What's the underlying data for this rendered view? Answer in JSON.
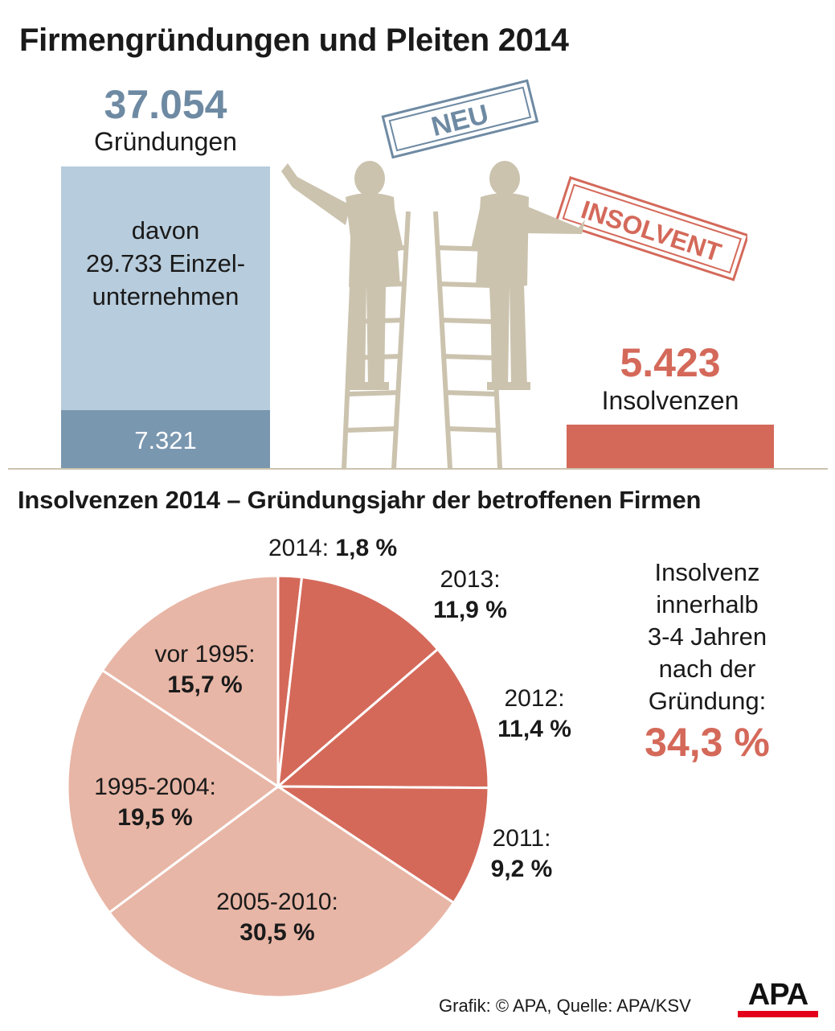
{
  "title": "Firmengründungen und Pleiten 2014",
  "founding": {
    "value": "37.054",
    "label": "Gründungen",
    "sub_line1": "davon",
    "sub_line2": "29.733 Einzel-",
    "sub_line3": "unternehmen",
    "lower_value": "7.321",
    "color_light": "#b7ccdc",
    "color_dark": "#7a97b0",
    "color_number": "#6e8aa3"
  },
  "insolvency": {
    "value": "5.423",
    "label": "Insolvenzen",
    "color": "#d4695a"
  },
  "signs": {
    "neu": "NEU",
    "insolvent": "INSOLVENT"
  },
  "figure_color": "#cbc3ae",
  "pie_title": "Insolvenzen 2014 – Gründungsjahr der betroffenen Firmen",
  "chart_data": {
    "type": "pie",
    "unit": "%",
    "slices": [
      {
        "label": "2014:",
        "value": 1.8,
        "display": "1,8 %",
        "color": "#d4695a"
      },
      {
        "label": "2013:",
        "value": 11.9,
        "display": "11,9 %",
        "color": "#d4695a"
      },
      {
        "label": "2012:",
        "value": 11.4,
        "display": "11,4 %",
        "color": "#d4695a"
      },
      {
        "label": "2011:",
        "value": 9.2,
        "display": "9,2 %",
        "color": "#d4695a"
      },
      {
        "label": "2005-2010:",
        "value": 30.5,
        "display": "30,5 %",
        "color": "#e8b6a6"
      },
      {
        "label": "1995-2004:",
        "value": 19.5,
        "display": "19,5 %",
        "color": "#e8b6a6"
      },
      {
        "label": "vor 1995:",
        "value": 15.7,
        "display": "15,7 %",
        "color": "#e8b6a6"
      }
    ]
  },
  "side_note": {
    "line1": "Insolvenz",
    "line2": "innerhalb",
    "line3": "3-4 Jahren",
    "line4": "nach der",
    "line5": "Gründung:",
    "value": "34,3 %"
  },
  "footer": {
    "credit": "Grafik: © APA, Quelle: APA/KSV",
    "logo": "APA"
  }
}
